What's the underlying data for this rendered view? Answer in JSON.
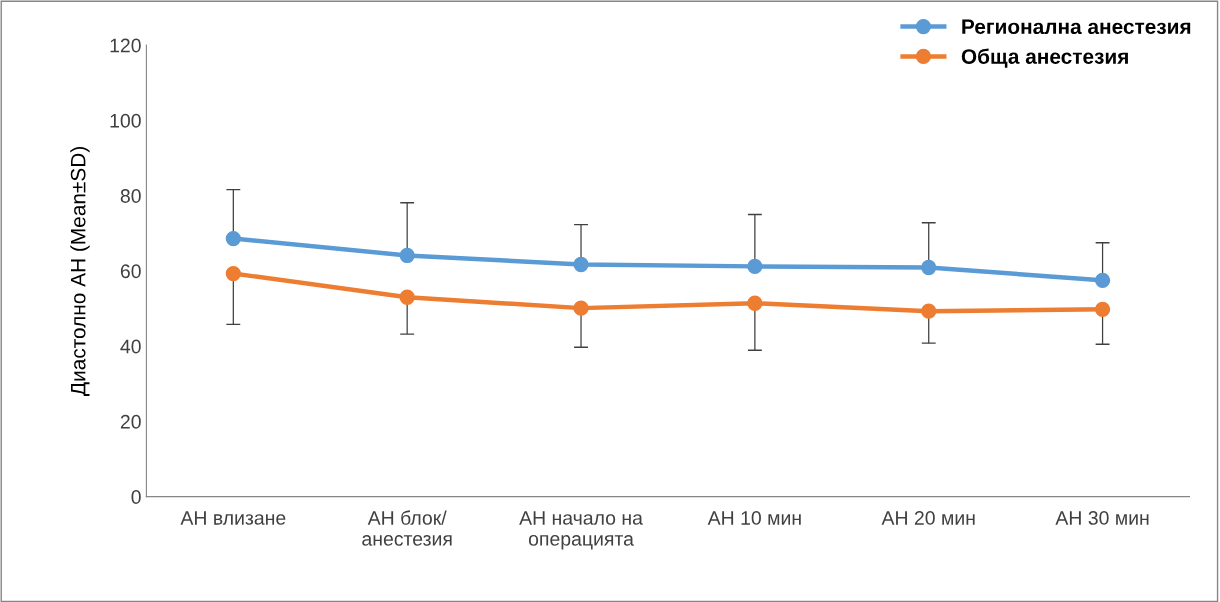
{
  "chart_data": {
    "type": "line",
    "ylabel": "Диастолно АН (Mean±SD)",
    "categories": [
      "АН влизане",
      "АН блок/\nанестезия",
      "АН начало на\nоперацията",
      "АН 10 мин",
      "АН 20 мин",
      "АН 30 мин"
    ],
    "series": [
      {
        "name": "Регионална анестезия",
        "color": "#5b9bd5",
        "values": [
          68.6,
          64.1,
          61.7,
          61.2,
          60.9,
          57.5
        ],
        "errors": [
          [
            68.6,
            81.6
          ],
          [
            64.1,
            78.1
          ],
          [
            61.7,
            72.3
          ],
          [
            61.2,
            75.0
          ],
          [
            60.9,
            72.8
          ],
          [
            57.5,
            67.5
          ]
        ]
      },
      {
        "name": "Обща анестезия",
        "color": "#ed7d31",
        "values": [
          59.3,
          53.0,
          50.1,
          51.4,
          49.3,
          49.8
        ],
        "errors": [
          [
            45.8,
            59.3
          ],
          [
            43.2,
            53.0
          ],
          [
            39.7,
            50.1
          ],
          [
            38.9,
            51.4
          ],
          [
            40.8,
            49.3
          ],
          [
            40.5,
            49.8
          ]
        ]
      }
    ],
    "ylim": [
      0,
      120
    ],
    "yticks": [
      0,
      20,
      40,
      60,
      80,
      100,
      120
    ],
    "grid": false,
    "legend": "top right",
    "marker": "circle",
    "line_style": "solid"
  }
}
